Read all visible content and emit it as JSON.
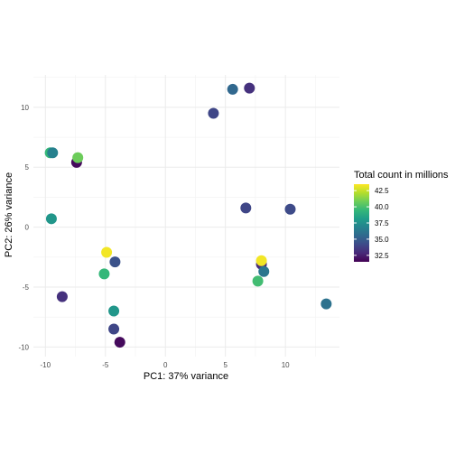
{
  "chart_data": {
    "type": "scatter",
    "title": "",
    "xlabel": "PC1: 37% variance",
    "ylabel": "PC2: 26% variance",
    "xlim": [
      -11,
      14.5
    ],
    "ylim": [
      -10.8,
      12.7
    ],
    "x_ticks": [
      -10,
      -5,
      0,
      5,
      10
    ],
    "y_ticks": [
      -10,
      -5,
      0,
      5,
      10
    ],
    "x_tick_labels": [
      "-10",
      "-5",
      "0",
      "5",
      "10"
    ],
    "y_tick_labels": [
      "-10",
      "-5",
      "0",
      "5",
      "10"
    ],
    "grid": true,
    "color_scale": {
      "name": "Total count in millions",
      "palette": "viridis",
      "min": 31.5,
      "max": 43.5,
      "ticks": [
        32.5,
        35.0,
        37.5,
        40.0,
        42.5
      ],
      "tick_labels": [
        "32.5",
        "35.0",
        "37.5",
        "40.0",
        "42.5"
      ],
      "legend_position": "right"
    },
    "points": [
      {
        "x": 5.6,
        "y": 11.5,
        "total_count": 35.5
      },
      {
        "x": 7.0,
        "y": 11.6,
        "total_count": 33.2
      },
      {
        "x": 4.0,
        "y": 9.5,
        "total_count": 34.0
      },
      {
        "x": -9.6,
        "y": 6.2,
        "total_count": 39.5
      },
      {
        "x": -9.4,
        "y": 6.2,
        "total_count": 36.8
      },
      {
        "x": -7.4,
        "y": 5.4,
        "total_count": 31.8
      },
      {
        "x": -7.3,
        "y": 5.8,
        "total_count": 40.8
      },
      {
        "x": -9.5,
        "y": 0.7,
        "total_count": 37.8
      },
      {
        "x": 6.7,
        "y": 1.6,
        "total_count": 34.0
      },
      {
        "x": 10.4,
        "y": 1.5,
        "total_count": 34.2
      },
      {
        "x": -4.9,
        "y": -2.1,
        "total_count": 43.3
      },
      {
        "x": -4.2,
        "y": -2.9,
        "total_count": 34.5
      },
      {
        "x": -5.1,
        "y": -3.9,
        "total_count": 39.5
      },
      {
        "x": 8.0,
        "y": -3.1,
        "total_count": 33.0
      },
      {
        "x": 8.0,
        "y": -2.8,
        "total_count": 43.3
      },
      {
        "x": 8.2,
        "y": -3.7,
        "total_count": 36.2
      },
      {
        "x": 7.7,
        "y": -4.5,
        "total_count": 39.8
      },
      {
        "x": -8.6,
        "y": -5.8,
        "total_count": 33.2
      },
      {
        "x": -4.3,
        "y": -7.0,
        "total_count": 37.8
      },
      {
        "x": 13.4,
        "y": -6.4,
        "total_count": 36.0
      },
      {
        "x": -4.3,
        "y": -8.5,
        "total_count": 34.0
      },
      {
        "x": -3.8,
        "y": -9.6,
        "total_count": 31.8
      }
    ]
  }
}
